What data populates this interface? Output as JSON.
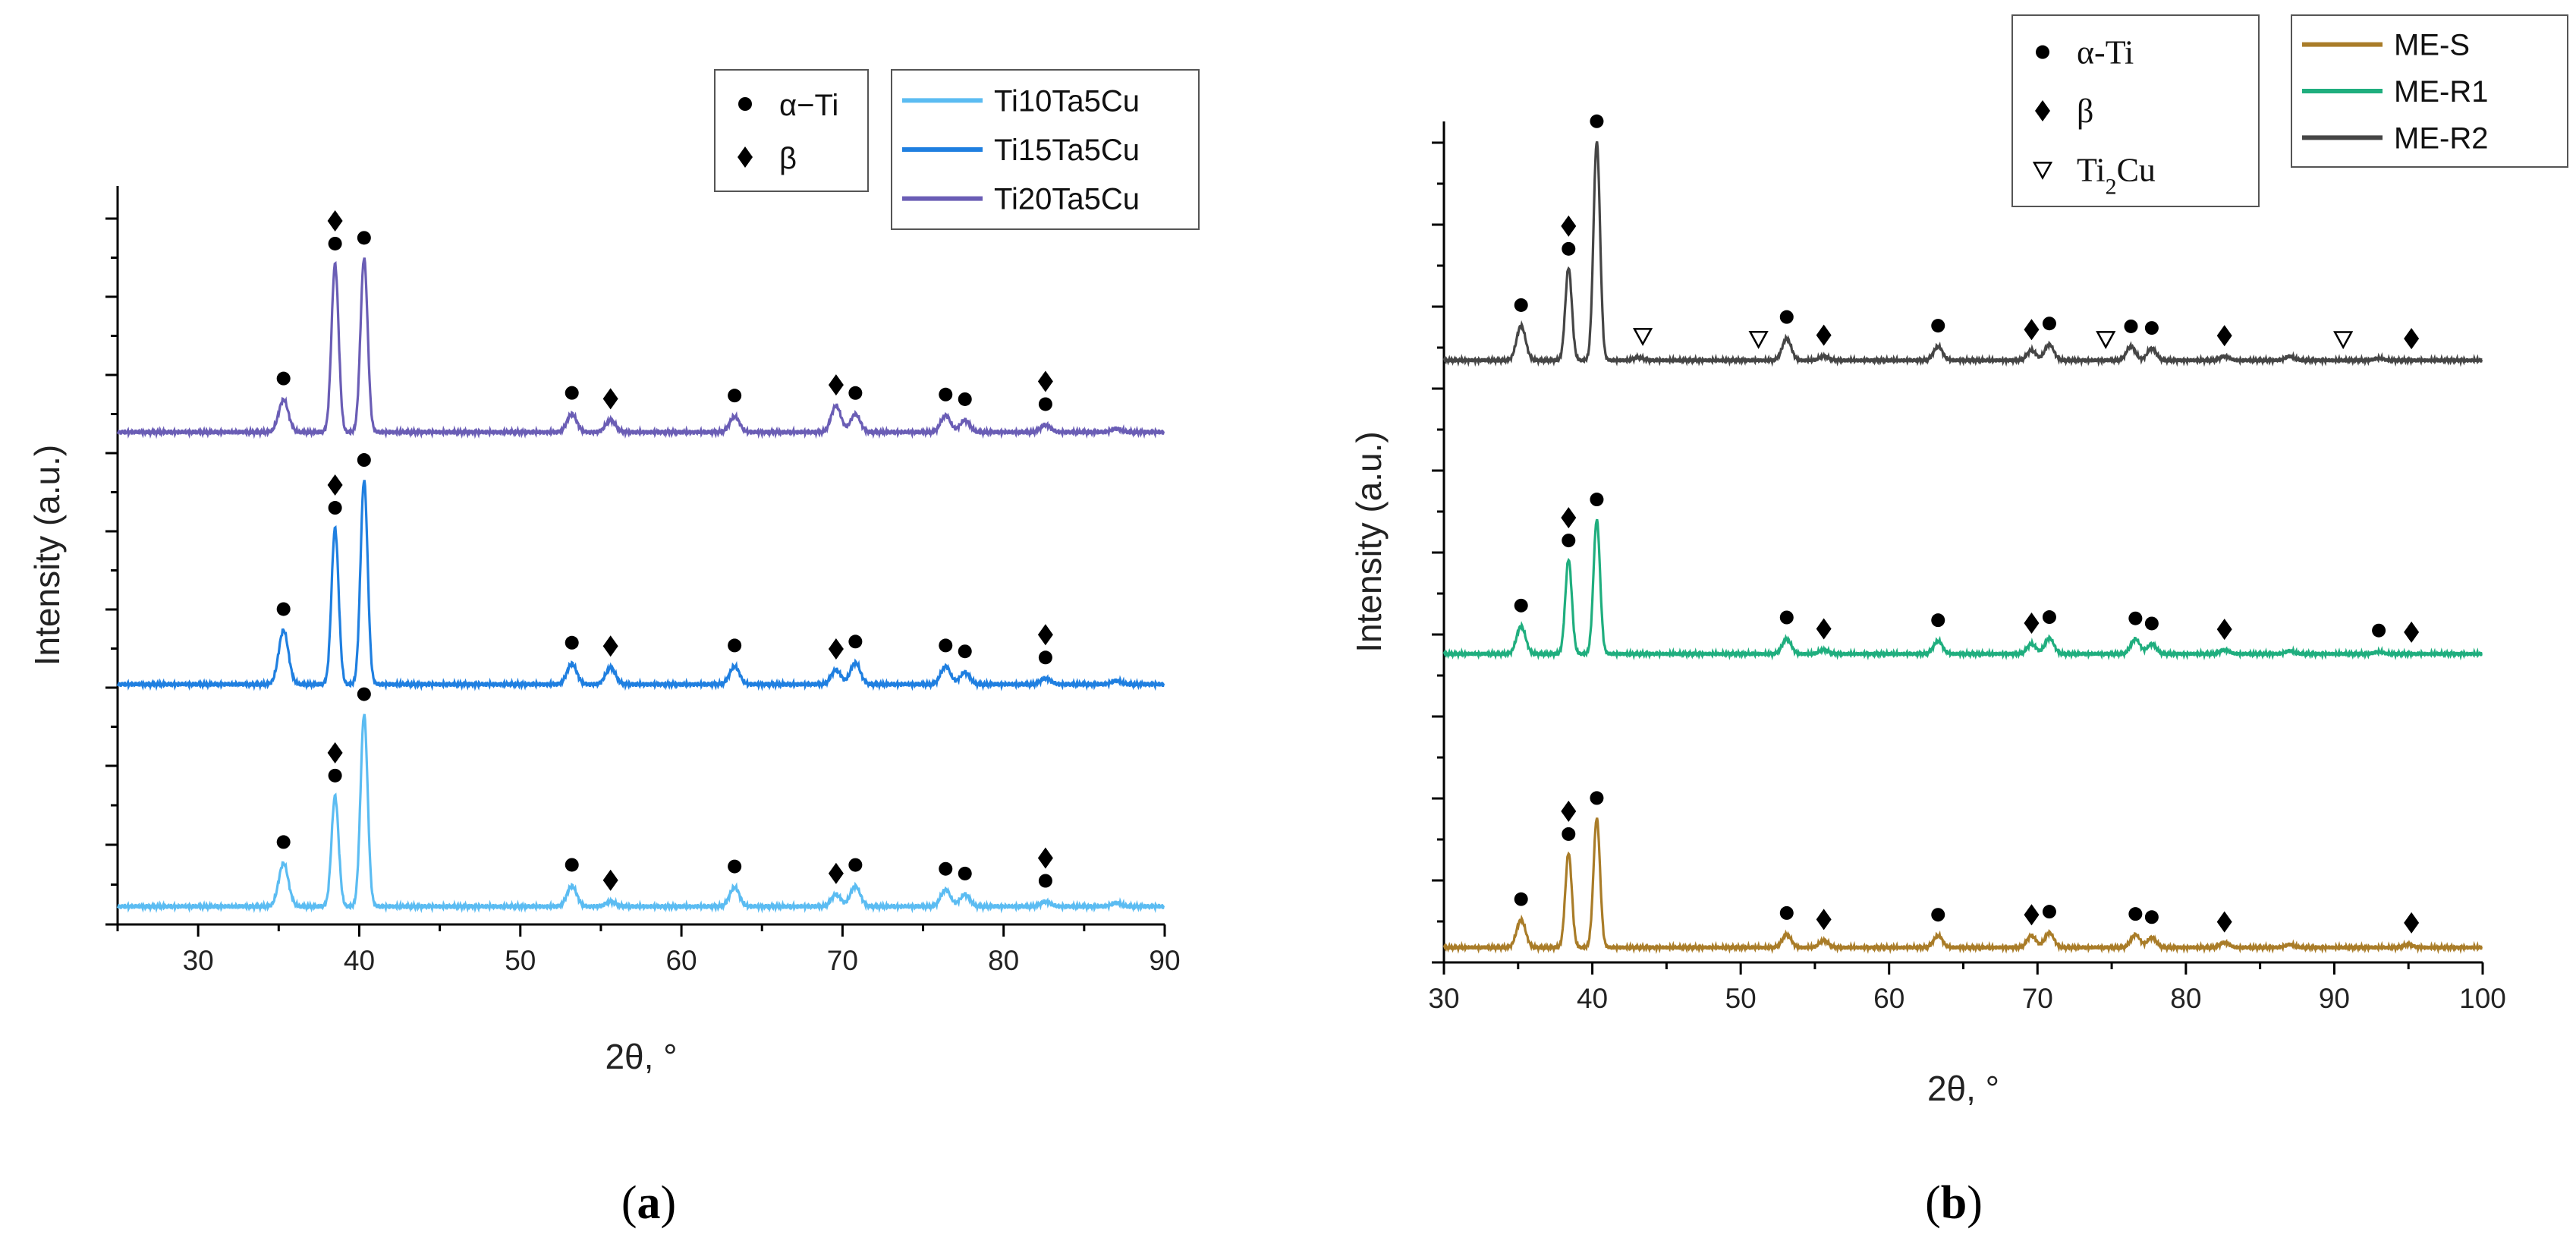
{
  "chart_data": [
    {
      "type": "line",
      "panel_label": "a",
      "xlabel": "2θ, °",
      "ylabel": "Intensity (a.u.)",
      "xlim": [
        25,
        90
      ],
      "xticks": [
        30,
        40,
        50,
        60,
        70,
        80,
        90
      ],
      "legend_markers": [
        {
          "symbol": "circle",
          "label": "α−Ti"
        },
        {
          "symbol": "diamond",
          "label": "β"
        }
      ],
      "series": [
        {
          "name": "Ti10Ta5Cu",
          "color": "#5bbcf2",
          "baseline": 0.0,
          "peaks": [
            [
              35.3,
              0.36
            ],
            [
              38.5,
              0.92
            ],
            [
              40.3,
              1.6
            ],
            [
              53.2,
              0.17
            ],
            [
              55.6,
              0.04
            ],
            [
              63.3,
              0.16
            ],
            [
              69.6,
              0.1
            ],
            [
              70.8,
              0.17
            ],
            [
              76.4,
              0.14
            ],
            [
              77.6,
              0.1
            ],
            [
              82.6,
              0.04
            ],
            [
              87,
              0.03
            ]
          ],
          "markers": [
            {
              "x": 35.3,
              "symbols": [
                "circle"
              ]
            },
            {
              "x": 38.5,
              "symbols": [
                "circle",
                "diamond"
              ]
            },
            {
              "x": 40.3,
              "symbols": [
                "circle"
              ]
            },
            {
              "x": 53.2,
              "symbols": [
                "circle"
              ]
            },
            {
              "x": 55.6,
              "symbols": [
                "diamond"
              ]
            },
            {
              "x": 63.3,
              "symbols": [
                "circle"
              ]
            },
            {
              "x": 69.6,
              "symbols": [
                "diamond"
              ]
            },
            {
              "x": 70.8,
              "symbols": [
                "circle"
              ]
            },
            {
              "x": 76.4,
              "symbols": [
                "circle"
              ]
            },
            {
              "x": 77.6,
              "symbols": [
                "circle"
              ]
            },
            {
              "x": 82.6,
              "symbols": [
                "circle",
                "diamond"
              ]
            }
          ]
        },
        {
          "name": "Ti15Ta5Cu",
          "color": "#1f7fe0",
          "baseline": 1.85,
          "peaks": [
            [
              35.3,
              0.45
            ],
            [
              38.5,
              1.3
            ],
            [
              40.3,
              1.7
            ],
            [
              53.2,
              0.17
            ],
            [
              55.6,
              0.14
            ],
            [
              63.3,
              0.15
            ],
            [
              69.6,
              0.12
            ],
            [
              70.8,
              0.18
            ],
            [
              76.4,
              0.15
            ],
            [
              77.6,
              0.1
            ],
            [
              82.6,
              0.05
            ],
            [
              87,
              0.03
            ]
          ],
          "markers": [
            {
              "x": 35.3,
              "symbols": [
                "circle"
              ]
            },
            {
              "x": 38.5,
              "symbols": [
                "circle",
                "diamond"
              ]
            },
            {
              "x": 40.3,
              "symbols": [
                "circle"
              ]
            },
            {
              "x": 53.2,
              "symbols": [
                "circle"
              ]
            },
            {
              "x": 55.6,
              "symbols": [
                "diamond"
              ]
            },
            {
              "x": 63.3,
              "symbols": [
                "circle"
              ]
            },
            {
              "x": 69.6,
              "symbols": [
                "diamond"
              ]
            },
            {
              "x": 70.8,
              "symbols": [
                "circle"
              ]
            },
            {
              "x": 76.4,
              "symbols": [
                "circle"
              ]
            },
            {
              "x": 77.6,
              "symbols": [
                "circle"
              ]
            },
            {
              "x": 82.6,
              "symbols": [
                "circle",
                "diamond"
              ]
            }
          ]
        },
        {
          "name": "Ti20Ta5Cu",
          "color": "#6a5db5",
          "baseline": 3.95,
          "peaks": [
            [
              35.3,
              0.27
            ],
            [
              38.5,
              1.4
            ],
            [
              40.3,
              1.45
            ],
            [
              53.2,
              0.15
            ],
            [
              55.6,
              0.1
            ],
            [
              63.3,
              0.13
            ],
            [
              69.6,
              0.22
            ],
            [
              70.8,
              0.15
            ],
            [
              76.4,
              0.14
            ],
            [
              77.6,
              0.1
            ],
            [
              82.6,
              0.06
            ],
            [
              87,
              0.03
            ]
          ],
          "markers": [
            {
              "x": 35.3,
              "symbols": [
                "circle"
              ]
            },
            {
              "x": 38.5,
              "symbols": [
                "circle",
                "diamond"
              ]
            },
            {
              "x": 40.3,
              "symbols": [
                "circle"
              ]
            },
            {
              "x": 53.2,
              "symbols": [
                "circle"
              ]
            },
            {
              "x": 55.6,
              "symbols": [
                "diamond"
              ]
            },
            {
              "x": 63.3,
              "symbols": [
                "circle"
              ]
            },
            {
              "x": 69.6,
              "symbols": [
                "diamond"
              ]
            },
            {
              "x": 70.8,
              "symbols": [
                "circle"
              ]
            },
            {
              "x": 76.4,
              "symbols": [
                "circle"
              ]
            },
            {
              "x": 77.6,
              "symbols": [
                "circle"
              ]
            },
            {
              "x": 82.6,
              "symbols": [
                "circle",
                "diamond"
              ]
            }
          ]
        }
      ]
    },
    {
      "type": "line",
      "panel_label": "b",
      "xlabel": "2θ, °",
      "ylabel": "Intensity (a.u.)",
      "xlim": [
        30,
        100
      ],
      "xticks": [
        30,
        40,
        50,
        60,
        70,
        80,
        90,
        100
      ],
      "legend_markers": [
        {
          "symbol": "circle",
          "label": "α-Ti"
        },
        {
          "symbol": "diamond",
          "label": "β"
        },
        {
          "symbol": "triangle-down-open",
          "label": "Ti",
          "sub": "2",
          "suffix": "Cu"
        }
      ],
      "series": [
        {
          "name": "ME-S",
          "color": "#a97c28",
          "baseline": 0.0,
          "peaks": [
            [
              35.2,
              0.28
            ],
            [
              38.4,
              0.95
            ],
            [
              40.3,
              1.3
            ],
            [
              53.1,
              0.13
            ],
            [
              55.6,
              0.07
            ],
            [
              63.3,
              0.12
            ],
            [
              69.6,
              0.12
            ],
            [
              70.8,
              0.15
            ],
            [
              76.6,
              0.13
            ],
            [
              77.7,
              0.1
            ],
            [
              82.6,
              0.05
            ],
            [
              87,
              0.03
            ],
            [
              95,
              0.03
            ]
          ],
          "markers": [
            {
              "x": 35.2,
              "symbols": [
                "circle"
              ]
            },
            {
              "x": 38.4,
              "symbols": [
                "circle",
                "diamond"
              ]
            },
            {
              "x": 40.3,
              "symbols": [
                "circle"
              ]
            },
            {
              "x": 53.1,
              "symbols": [
                "circle"
              ]
            },
            {
              "x": 55.6,
              "symbols": [
                "diamond"
              ]
            },
            {
              "x": 63.3,
              "symbols": [
                "circle"
              ]
            },
            {
              "x": 69.6,
              "symbols": [
                "diamond"
              ]
            },
            {
              "x": 70.8,
              "symbols": [
                "circle"
              ]
            },
            {
              "x": 76.6,
              "symbols": [
                "circle"
              ]
            },
            {
              "x": 77.7,
              "symbols": [
                "circle"
              ]
            },
            {
              "x": 82.6,
              "symbols": [
                "diamond"
              ]
            },
            {
              "x": 95.2,
              "symbols": [
                "diamond"
              ]
            }
          ]
        },
        {
          "name": "ME-R1",
          "color": "#1fae7e",
          "baseline": 2.95,
          "peaks": [
            [
              35.2,
              0.28
            ],
            [
              38.4,
              0.95
            ],
            [
              40.3,
              1.35
            ],
            [
              53.1,
              0.15
            ],
            [
              55.6,
              0.04
            ],
            [
              63.3,
              0.13
            ],
            [
              69.6,
              0.1
            ],
            [
              70.8,
              0.16
            ],
            [
              76.6,
              0.15
            ],
            [
              77.7,
              0.1
            ],
            [
              82.6,
              0.04
            ],
            [
              87,
              0.03
            ],
            [
              93,
              0.02
            ]
          ],
          "markers": [
            {
              "x": 35.2,
              "symbols": [
                "circle"
              ]
            },
            {
              "x": 38.4,
              "symbols": [
                "circle",
                "diamond"
              ]
            },
            {
              "x": 40.3,
              "symbols": [
                "circle"
              ]
            },
            {
              "x": 53.1,
              "symbols": [
                "circle"
              ]
            },
            {
              "x": 55.6,
              "symbols": [
                "diamond"
              ]
            },
            {
              "x": 63.3,
              "symbols": [
                "circle"
              ]
            },
            {
              "x": 69.6,
              "symbols": [
                "diamond"
              ]
            },
            {
              "x": 70.8,
              "symbols": [
                "circle"
              ]
            },
            {
              "x": 76.6,
              "symbols": [
                "circle"
              ]
            },
            {
              "x": 77.7,
              "symbols": [
                "circle"
              ]
            },
            {
              "x": 82.6,
              "symbols": [
                "diamond"
              ]
            },
            {
              "x": 93.0,
              "symbols": [
                "circle"
              ]
            },
            {
              "x": 95.2,
              "symbols": [
                "diamond"
              ]
            }
          ]
        },
        {
          "name": "ME-R2",
          "color": "#454545",
          "baseline": 5.9,
          "peaks": [
            [
              35.2,
              0.35
            ],
            [
              38.4,
              0.93
            ],
            [
              40.3,
              2.2
            ],
            [
              43.1,
              0.03
            ],
            [
              53.1,
              0.22
            ],
            [
              55.6,
              0.04
            ],
            [
              63.3,
              0.14
            ],
            [
              69.6,
              0.1
            ],
            [
              70.8,
              0.16
            ],
            [
              76.3,
              0.14
            ],
            [
              77.7,
              0.12
            ],
            [
              82.6,
              0.04
            ],
            [
              87,
              0.04
            ],
            [
              93,
              0.02
            ]
          ],
          "markers": [
            {
              "x": 35.2,
              "symbols": [
                "circle"
              ]
            },
            {
              "x": 38.4,
              "symbols": [
                "circle",
                "diamond"
              ]
            },
            {
              "x": 40.3,
              "symbols": [
                "circle"
              ]
            },
            {
              "x": 43.4,
              "symbols": [
                "triangle-down-open"
              ]
            },
            {
              "x": 51.2,
              "symbols": [
                "triangle-down-open"
              ]
            },
            {
              "x": 53.1,
              "symbols": [
                "circle"
              ]
            },
            {
              "x": 55.6,
              "symbols": [
                "diamond"
              ]
            },
            {
              "x": 63.3,
              "symbols": [
                "circle"
              ]
            },
            {
              "x": 69.6,
              "symbols": [
                "diamond"
              ]
            },
            {
              "x": 70.8,
              "symbols": [
                "circle"
              ]
            },
            {
              "x": 74.6,
              "symbols": [
                "triangle-down-open"
              ]
            },
            {
              "x": 76.3,
              "symbols": [
                "circle"
              ]
            },
            {
              "x": 77.7,
              "symbols": [
                "circle"
              ]
            },
            {
              "x": 82.6,
              "symbols": [
                "diamond"
              ]
            },
            {
              "x": 90.6,
              "symbols": [
                "triangle-down-open"
              ]
            },
            {
              "x": 95.2,
              "symbols": [
                "diamond"
              ]
            }
          ]
        }
      ]
    }
  ]
}
